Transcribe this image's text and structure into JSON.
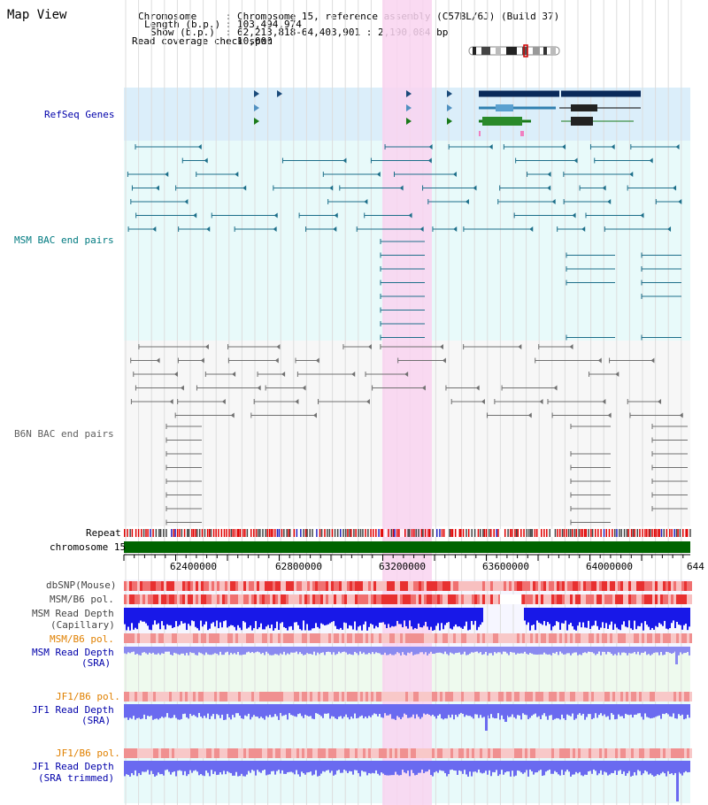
{
  "page": {
    "title": "Map View"
  },
  "header": {
    "chromosome_label": "Chromosome",
    "chromosome_value": "Chromosome 15, reference assembly (C57BL/6J) (Build 37)",
    "length_label": "Length (b.p.)",
    "length_value": "103,494,974",
    "show_label": "Show (b.p.)",
    "show_value": "62,213,818-64,403,901 : 2,190,084 bp",
    "coverage_label": "Read coverage check span",
    "coverage_value": "10,000"
  },
  "tracks": {
    "refseq": "RefSeq Genes",
    "msm_bac": "MSM BAC end pairs",
    "b6n_bac": "B6N BAC end pairs",
    "repeat": "Repeat",
    "chromosome": "chromosome 15",
    "dbsnp": "dbSNP(Mouse)",
    "msm_b6_pol": "MSM/B6 pol.",
    "msm_read_depth": "MSM Read Depth",
    "capillary": "(Capillary)",
    "msm_b6_pol2": "MSM/B6 pol.",
    "msm_read_depth_sra": "MSM Read Depth",
    "sra": "(SRA)",
    "jf1_b6_pol": "JF1/B6 pol.",
    "jf1_read_depth": "JF1 Read Depth",
    "sra2": "(SRA)",
    "jf1_b6_pol2": "JF1/B6 pol.",
    "jf1_read_depth_trim": "JF1 Read Depth",
    "sra_trimmed": "(SRA trimmed)"
  },
  "axis": {
    "ticks": [
      "62400000",
      "62800000",
      "63200000",
      "63600000",
      "64000000",
      "644"
    ]
  },
  "colors": {
    "refseq_bg": "#dbeefa",
    "msm_bg": "#e8fafa",
    "b6n_bg": "#f4f4f4",
    "highlight": "#f9d4f0",
    "chromosome_bar": "#006400",
    "msm_pair": "#1d6f8a",
    "b6n_pair": "#707070",
    "depth_blue": "#1010e0",
    "depth_light": "#7070f0",
    "label_blue": "#0000aa",
    "label_orange": "#e08000",
    "label_teal": "#007a80"
  }
}
